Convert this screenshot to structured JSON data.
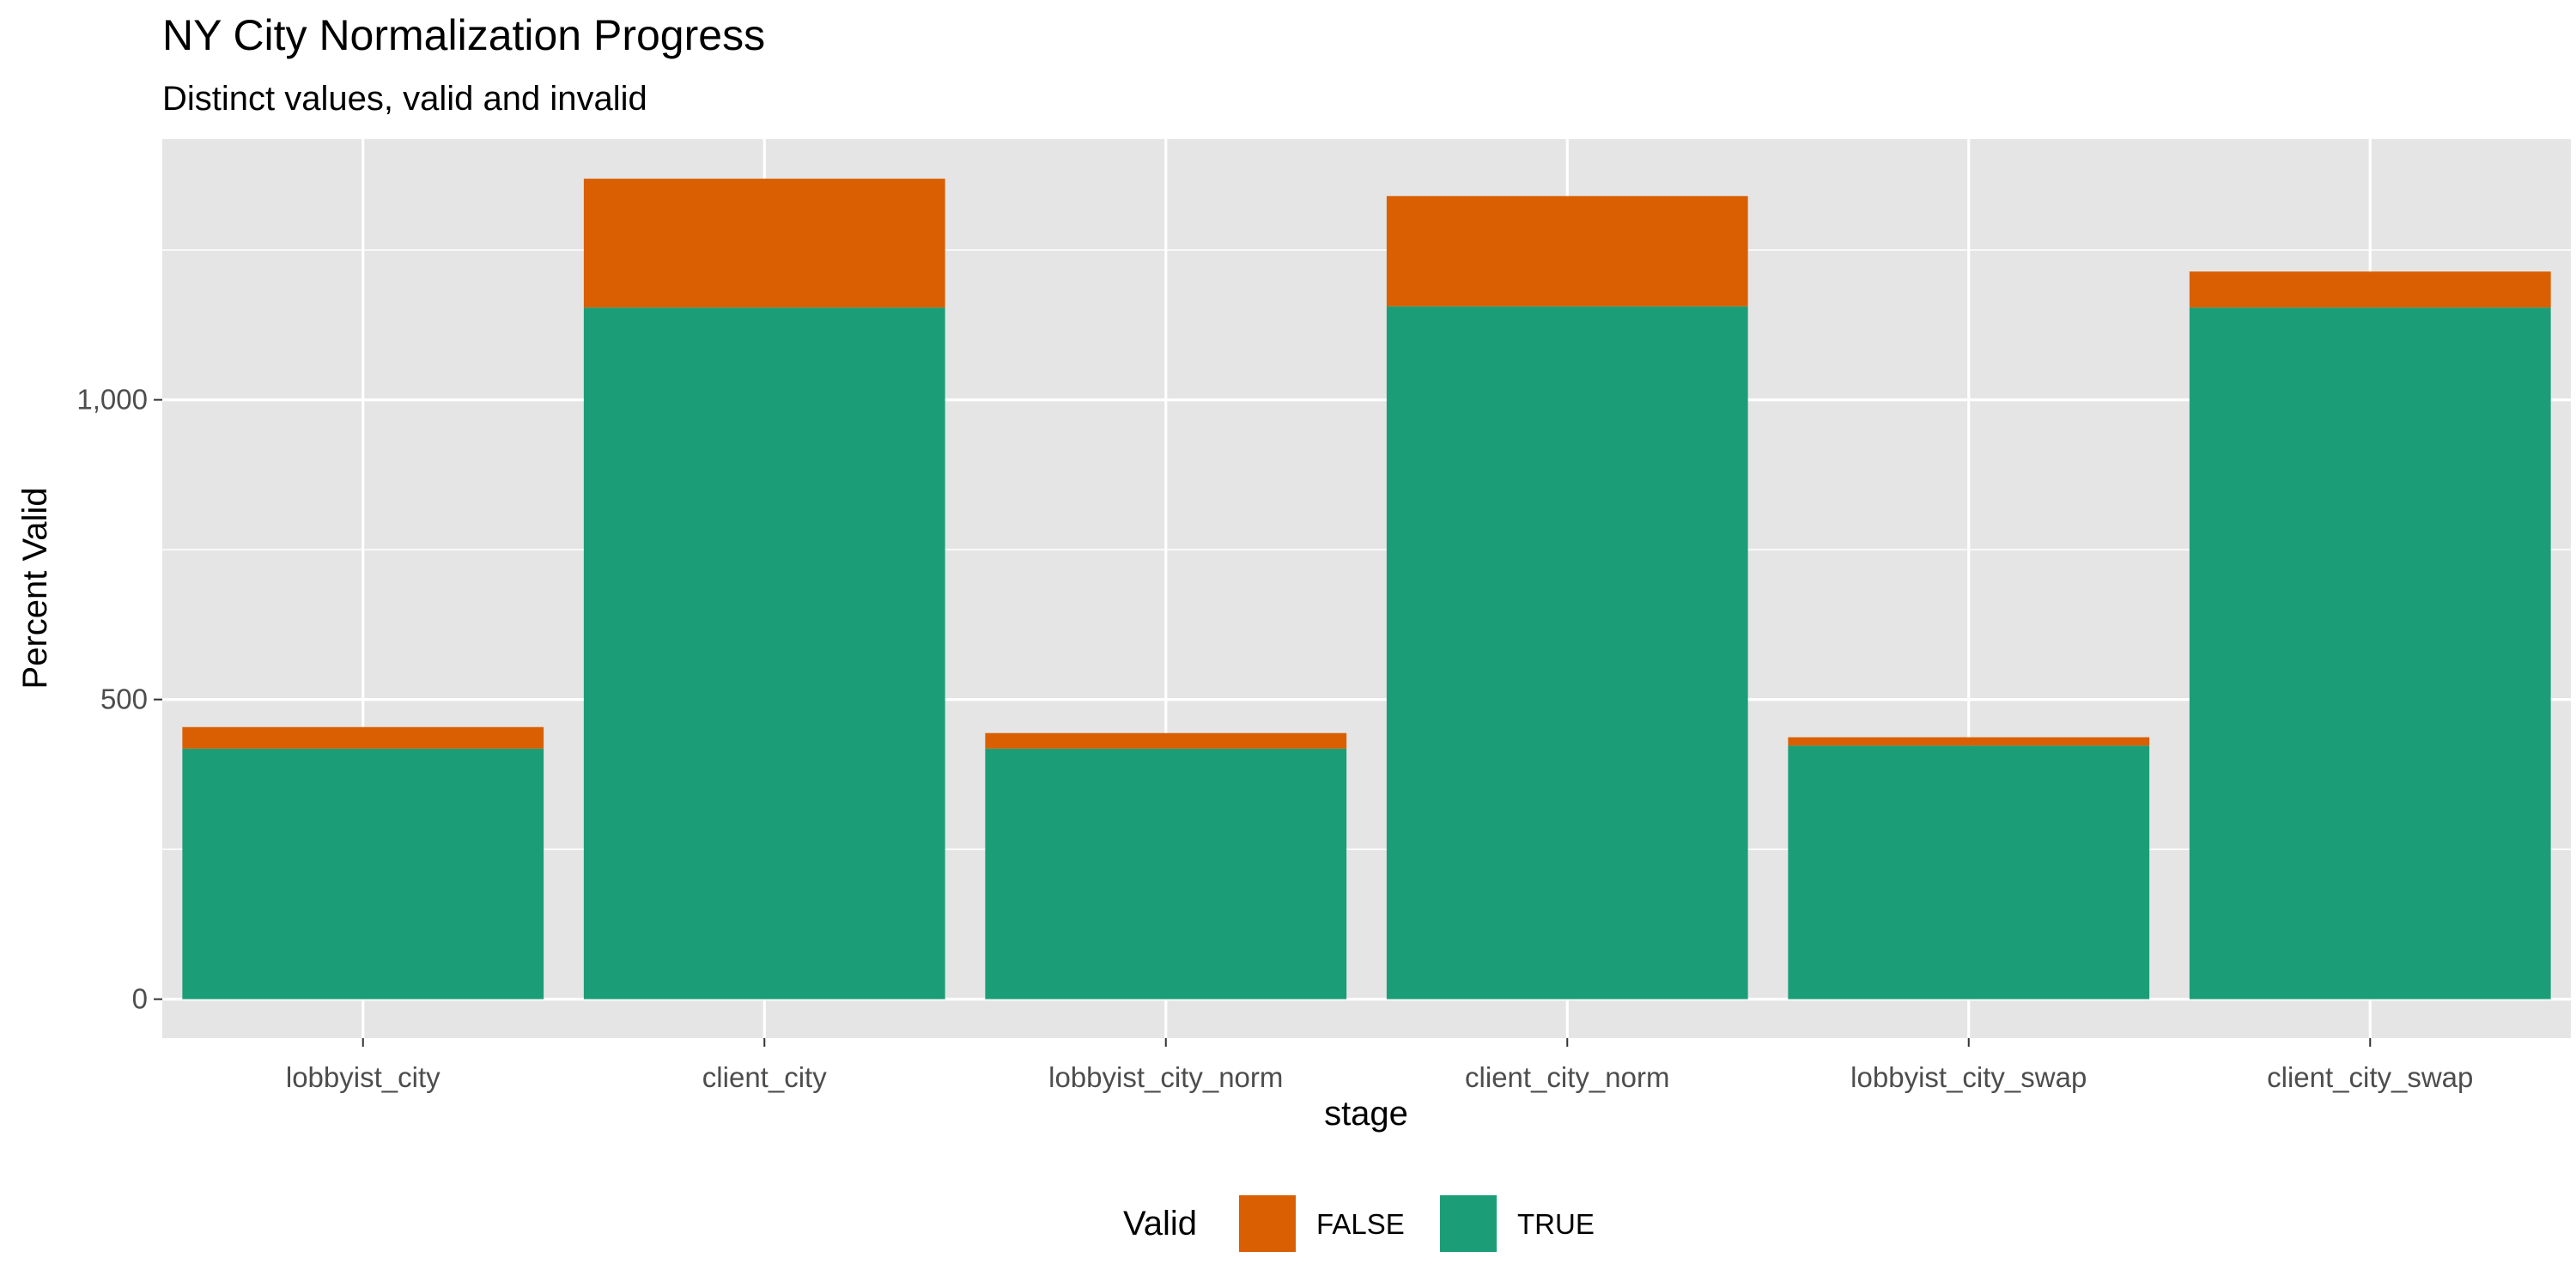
{
  "chart_data": {
    "type": "bar",
    "stacked": true,
    "title": "NY City Normalization Progress",
    "subtitle": "Distinct values, valid and invalid",
    "xlabel": "stage",
    "ylabel": "Percent Valid",
    "categories": [
      "lobbyist_city",
      "client_city",
      "lobbyist_city_norm",
      "client_city_norm",
      "lobbyist_city_swap",
      "client_city_swap"
    ],
    "series": [
      {
        "name": "TRUE",
        "color": "#1b9e77",
        "values": [
          418,
          1154,
          418,
          1156,
          423,
          1154
        ]
      },
      {
        "name": "FALSE",
        "color": "#d95f02",
        "values": [
          36,
          215,
          26,
          184,
          14,
          60
        ]
      }
    ],
    "ylim": [
      -65,
      1435
    ],
    "yticks": [
      0,
      500,
      1000
    ],
    "ytick_labels": [
      "0",
      "500",
      "1,000"
    ],
    "grid": true,
    "panel_background": "#e5e5e5",
    "legend": {
      "title": "Valid",
      "position": "bottom",
      "items": [
        {
          "label": "FALSE",
          "color": "#d95f02"
        },
        {
          "label": "TRUE",
          "color": "#1b9e77"
        }
      ]
    }
  }
}
